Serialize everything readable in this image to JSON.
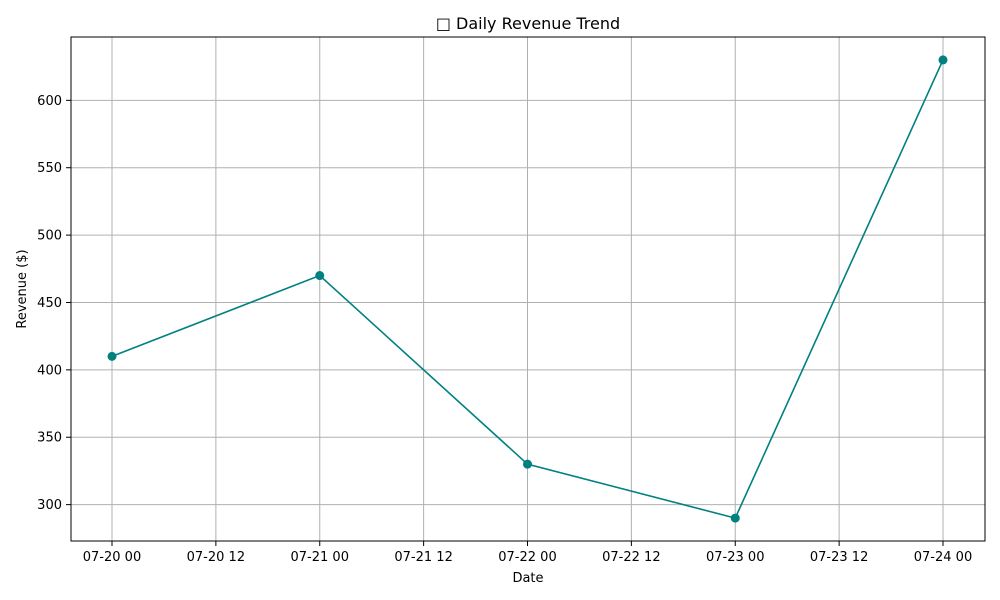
{
  "chart_data": {
    "type": "line",
    "title": "□ Daily Revenue Trend",
    "xlabel": "Date",
    "ylabel": "Revenue ($)",
    "x": [
      "2024-07-20",
      "2024-07-21",
      "2024-07-22",
      "2024-07-23",
      "2024-07-24"
    ],
    "series": [
      {
        "values": [
          410,
          470,
          330,
          290,
          630
        ],
        "color": "#008080",
        "marker": "circle"
      }
    ],
    "x_ticks": [
      "07-20 00",
      "07-20 12",
      "07-21 00",
      "07-21 12",
      "07-22 00",
      "07-22 12",
      "07-23 00",
      "07-23 12",
      "07-24 00"
    ],
    "y_ticks": [
      300,
      350,
      400,
      450,
      500,
      550,
      600
    ],
    "ylim": [
      273,
      647
    ],
    "grid": true,
    "grid_color": "#b0b0b0"
  }
}
